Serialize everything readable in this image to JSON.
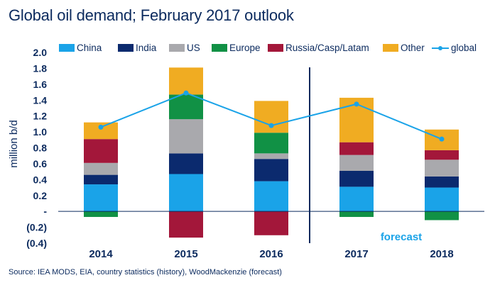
{
  "chart_data": {
    "type": "bar",
    "stacked": true,
    "title": "Global oil demand; February 2017 outlook",
    "ylabel": "million b/d",
    "xlabel": "",
    "ylim": [
      -0.4,
      2.0
    ],
    "yticks": [
      {
        "value": 2.0,
        "label": "2.0"
      },
      {
        "value": 1.8,
        "label": "1.8"
      },
      {
        "value": 1.6,
        "label": "1.6"
      },
      {
        "value": 1.4,
        "label": "1.4"
      },
      {
        "value": 1.2,
        "label": "1.2"
      },
      {
        "value": 1.0,
        "label": "1.0"
      },
      {
        "value": 0.8,
        "label": "0.8"
      },
      {
        "value": 0.6,
        "label": "0.6"
      },
      {
        "value": 0.4,
        "label": "0.4"
      },
      {
        "value": 0.2,
        "label": "0.2"
      },
      {
        "value": 0.0,
        "label": "-"
      },
      {
        "value": -0.2,
        "label": "(0.2)"
      },
      {
        "value": -0.4,
        "label": "(0.4)"
      }
    ],
    "categories": [
      "2014",
      "2015",
      "2016",
      "2017",
      "2018"
    ],
    "series": [
      {
        "name": "China",
        "color": "#1aa3e8",
        "values": [
          0.34,
          0.47,
          0.38,
          0.31,
          0.3
        ]
      },
      {
        "name": "India",
        "color": "#0b2a6e",
        "values": [
          0.12,
          0.26,
          0.28,
          0.2,
          0.14
        ]
      },
      {
        "name": "US",
        "color": "#a9a9ad",
        "values": [
          0.15,
          0.43,
          0.07,
          0.2,
          0.21
        ]
      },
      {
        "name": "Europe",
        "color": "#119145",
        "values": [
          -0.07,
          0.31,
          0.26,
          -0.07,
          -0.11
        ]
      },
      {
        "name": "Russia/Casp/Latam",
        "color": "#a3173a",
        "values": [
          0.3,
          -0.33,
          -0.3,
          0.16,
          0.12
        ]
      },
      {
        "name": "Other",
        "color": "#f0ac22",
        "values": [
          0.21,
          0.34,
          0.4,
          0.56,
          0.26
        ]
      }
    ],
    "line_series": {
      "name": "global",
      "color": "#1aa3e8",
      "values": [
        1.06,
        1.49,
        1.08,
        1.35,
        0.91
      ]
    },
    "forecast_start_index": 3,
    "annotation": "forecast",
    "legend_position": "top"
  },
  "source": "Source: IEA MODS, EIA, country statistics (history), WoodMackenzie (forecast)"
}
